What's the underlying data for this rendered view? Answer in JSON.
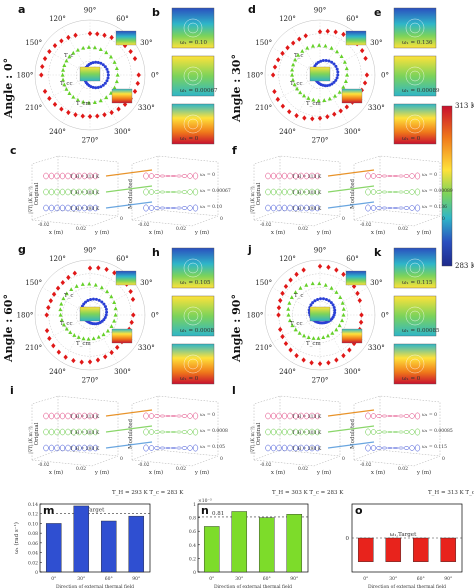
{
  "panel_letters": [
    "a",
    "b",
    "c",
    "d",
    "e",
    "f",
    "g",
    "h",
    "i",
    "j",
    "k",
    "l",
    "m",
    "n",
    "o"
  ],
  "angle_labels": [
    "Angle : 0°",
    "Angle : 30°",
    "Angle : 60°",
    "Angle : 90°"
  ],
  "polar_ticks": [
    "90°",
    "60°",
    "30°",
    "0°",
    "330°",
    "300°",
    "270°",
    "240°",
    "210°",
    "180°",
    "150°",
    "120°"
  ],
  "temp_labels": {
    "T_c": "T_c",
    "T_cc": "T_cc",
    "T_cm": "T_cm"
  },
  "colorbar": {
    "top": "313 K",
    "bottom": "283 K",
    "colors": [
      "#c8102e",
      "#f07a1a",
      "#ffe23a",
      "#7cd35a",
      "#2fb6c8",
      "#2a4fbf",
      "#1e2a8a"
    ]
  },
  "omega_values": {
    "b": [
      "ω₁ = 0.10",
      "ω₁ = 0.00067",
      "ω₁ = 0"
    ],
    "e": [
      "ω₁ = 0.136",
      "ω₁ = 0.00089",
      "ω₁ = 0"
    ],
    "h": [
      "ω₁ = 0.105",
      "ω₁ = 0.0008",
      "ω₁ = 0"
    ],
    "k": [
      "ω₁ = 0.115",
      "ω₁ = 0.00085",
      "ω₁ = 0"
    ]
  },
  "three_d": {
    "left_labels": [
      "Original",
      "Modulated"
    ],
    "zlabel": "|∇T| (K m⁻¹)",
    "xlabel": "x (m)",
    "ylabel": "y (m)",
    "tick_neg": "-0.02",
    "tick_pos": "0.02",
    "zeros": "0",
    "legends": {
      "c": [
        "T_H = 313 K",
        "T_H = 303 K",
        "T_H = 293 K"
      ],
      "f": [
        "T_H = 313 K",
        "T_H = 303 K",
        "T_H = 293 K"
      ],
      "i": [
        "T_H = 313 K",
        "T_H = 303 K",
        "T_H = 293 K"
      ],
      "l": [
        "T_H = 313 K",
        "T_H = 303 K",
        "T_H = 293 K"
      ]
    },
    "omega": {
      "c": [
        "ω₁ = 0",
        "ω₁ = 0.00067",
        "ω₁ = 0.10"
      ],
      "f": [
        "ω₁ = 0",
        "ω₁ = 0.00089",
        "ω₁ = 0.136"
      ],
      "i": [
        "ω₁ = 0",
        "ω₁ = 0.0008",
        "ω₁ = 0.105"
      ],
      "l": [
        "ω₁ = 0",
        "ω₁ = 0.00085",
        "ω₁ = 0.115"
      ]
    }
  },
  "bottom_headers": {
    "m": "T_H = 293 K   T_c = 283 K",
    "n": "T_H = 303 K   T_c = 283 K",
    "o": "T_H = 313 K   T_c = 283 K"
  },
  "chart_data": [
    {
      "panel": "m",
      "type": "bar",
      "categories": [
        "0°",
        "30°",
        "60°",
        "90°"
      ],
      "values": [
        0.1,
        0.136,
        0.105,
        0.115
      ],
      "ylim": [
        0,
        0.14
      ],
      "yticks": [
        "0",
        "0.02",
        "0.04",
        "0.06",
        "0.08",
        "0.10",
        "0.12",
        "0.14"
      ],
      "target": 0.12,
      "target_label": "ω₁,Target",
      "ylabel": "ω₁ (rad s⁻¹)",
      "xlabel": "Direction of external thermal field",
      "color": "#2f4fd1"
    },
    {
      "panel": "n",
      "type": "bar",
      "categories": [
        "0°",
        "30°",
        "60°",
        "90°"
      ],
      "values": [
        0.67,
        0.89,
        0.8,
        0.85
      ],
      "ylim": [
        0,
        1
      ],
      "yticks": [
        "0",
        "0.2",
        "0.4",
        "0.6",
        "0.8",
        "1"
      ],
      "multiplier": "×10⁻³",
      "target": 0.81,
      "target_label": "0.81",
      "xlabel": "Direction of external thermal field",
      "color": "#7ddc2a"
    },
    {
      "panel": "o",
      "type": "bar",
      "categories": [
        "0°",
        "30°",
        "60°",
        "90°"
      ],
      "values": [
        0,
        0,
        0,
        0
      ],
      "ylim": [
        -1,
        1
      ],
      "yticks": [
        "0"
      ],
      "target": 0,
      "target_label": "ω₁,Target",
      "xlabel": "Direction of external thermal field",
      "color": "#e8231c"
    }
  ]
}
